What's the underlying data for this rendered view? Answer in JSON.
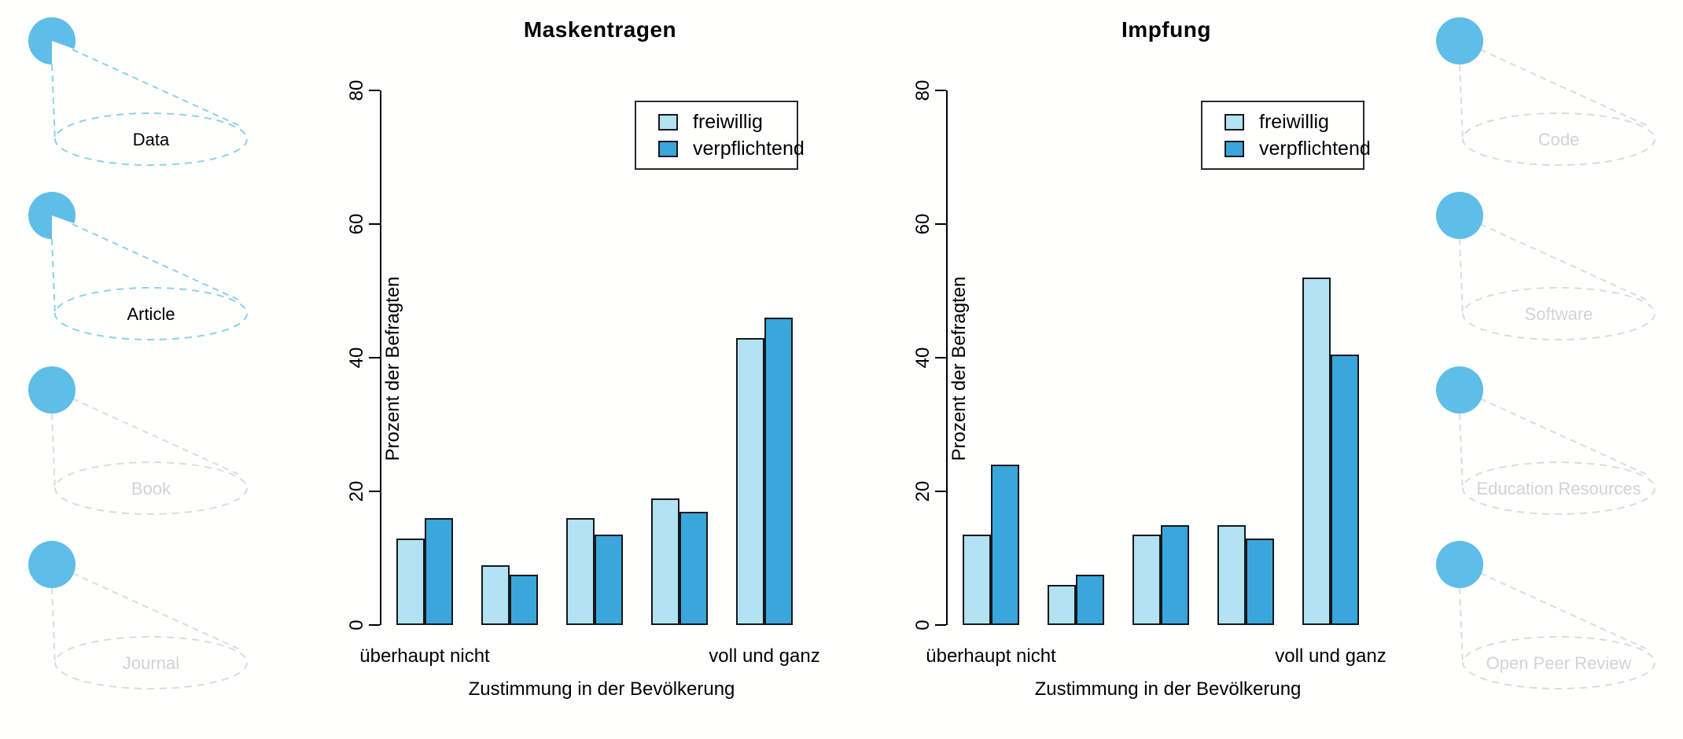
{
  "palette": {
    "bar_light": "#B3E2F2",
    "bar_dark": "#3AA6DC",
    "bar_border": "#15181c",
    "side_circle_fill": "#5EBEE7",
    "side_active_dash": "#90D0EA",
    "side_active_text": "#000000",
    "side_inactive_dash": "#DCDCDC",
    "side_inactive_text": "#D3D3D3",
    "axis_color": "#000000"
  },
  "sidebar_left": {
    "items": [
      {
        "label": "Data",
        "active": true
      },
      {
        "label": "Article",
        "active": true
      },
      {
        "label": "Book",
        "active": false
      },
      {
        "label": "Journal",
        "active": false
      }
    ]
  },
  "sidebar_right": {
    "items": [
      {
        "label": "Code",
        "active": false
      },
      {
        "label": "Software",
        "active": false
      },
      {
        "label": "Education Resources",
        "active": false
      },
      {
        "label": "Open Peer Review",
        "active": false
      }
    ]
  },
  "chart_data": [
    {
      "type": "bar",
      "title": "Maskentragen",
      "xlabel": "Zustimmung in der Bevölkerung",
      "ylabel": "Prozent der Befragten",
      "ylim": [
        0,
        80
      ],
      "yticks": [
        0,
        20,
        40,
        60,
        80
      ],
      "grid": false,
      "legend_position": "top-right",
      "categories": [
        "überhaupt nicht",
        "",
        "",
        "",
        "voll und ganz"
      ],
      "series": [
        {
          "name": "freiwillig",
          "values": [
            13,
            9,
            16,
            19,
            43
          ]
        },
        {
          "name": "verpflichtend",
          "values": [
            16,
            7.5,
            13.5,
            17,
            46
          ]
        }
      ]
    },
    {
      "type": "bar",
      "title": "Impfung",
      "xlabel": "Zustimmung in der Bevölkerung",
      "ylabel": "Prozent der Befragten",
      "ylim": [
        0,
        80
      ],
      "yticks": [
        0,
        20,
        40,
        60,
        80
      ],
      "grid": false,
      "legend_position": "top-right",
      "categories": [
        "überhaupt nicht",
        "",
        "",
        "",
        "voll und ganz"
      ],
      "series": [
        {
          "name": "freiwillig",
          "values": [
            13.5,
            6,
            13.5,
            15,
            52
          ]
        },
        {
          "name": "verpflichtend",
          "values": [
            24,
            7.5,
            15,
            13,
            40.5
          ]
        }
      ]
    }
  ]
}
